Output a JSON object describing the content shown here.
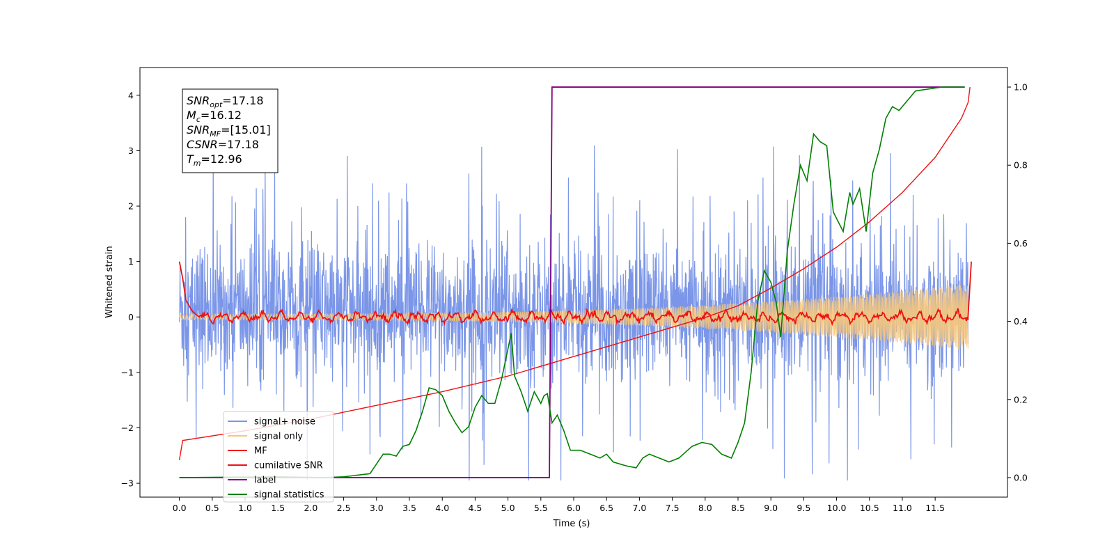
{
  "chart_data": {
    "type": "line",
    "xlabel": "Time (s)",
    "ylabel_left": "Whitened strain",
    "ylabel_right": "",
    "xlim": [
      -0.6,
      12.6
    ],
    "ylim_left": [
      -3.25,
      4.5
    ],
    "ylim_right": [
      -0.05,
      1.05
    ],
    "x_ticks": [
      "0.0",
      "0.5",
      "1.0",
      "1.5",
      "2.0",
      "2.5",
      "3.0",
      "3.5",
      "4.0",
      "4.5",
      "5.0",
      "5.5",
      "6.0",
      "6.5",
      "7.0",
      "7.5",
      "8.0",
      "8.5",
      "9.0",
      "9.5",
      "10.0",
      "10.5",
      "11.0",
      "11.5"
    ],
    "y_ticks_left": [
      "−3",
      "−2",
      "−1",
      "0",
      "1",
      "2",
      "3",
      "4"
    ],
    "y_ticks_right": [
      "0.0",
      "0.2",
      "0.4",
      "0.6",
      "0.8",
      "1.0"
    ],
    "grid": false,
    "legend_position": "lower-left",
    "annotation": {
      "lines": [
        {
          "sym": "SNR",
          "sub": "opt",
          "val": "=17.18"
        },
        {
          "sym": "M",
          "sub": "c",
          "val": "=16.12"
        },
        {
          "sym": "SNR",
          "sub": "MF",
          "val": "=[15.01]"
        },
        {
          "sym": "CSNR",
          "sub": "",
          "val": "=17.18"
        },
        {
          "sym": "T",
          "sub": "m",
          "val": "=12.96"
        }
      ]
    },
    "series": [
      {
        "name": "signal+ noise",
        "axis": "left",
        "color": "#7b96e8",
        "description": "noise band roughly between -1.4 and 1.6 with spikes to about ±3",
        "t_range": [
          0.0,
          12.0
        ]
      },
      {
        "name": "signal only",
        "axis": "left",
        "color": "#f5c77c",
        "description": "chirp with amplitude growing from ~0.05 to ~0.6",
        "t_range": [
          0.0,
          12.0
        ]
      },
      {
        "name": "MF",
        "axis": "left",
        "color": "#ee1111",
        "points": [
          [
            0.0,
            1.0
          ],
          [
            0.05,
            0.7
          ],
          [
            0.1,
            0.3
          ],
          [
            0.2,
            0.1
          ],
          [
            0.3,
            0.0
          ],
          [
            0.5,
            0.05
          ],
          [
            12.0,
            0.0
          ],
          [
            12.03,
            0.6
          ],
          [
            12.05,
            1.0
          ]
        ]
      },
      {
        "name": "cumilative SNR",
        "axis": "right",
        "color": "#ee1111",
        "points": [
          [
            0.0,
            0.045
          ],
          [
            0.05,
            0.095
          ],
          [
            1.0,
            0.12
          ],
          [
            2.0,
            0.15
          ],
          [
            3.0,
            0.185
          ],
          [
            4.0,
            0.22
          ],
          [
            5.0,
            0.26
          ],
          [
            6.0,
            0.31
          ],
          [
            7.0,
            0.36
          ],
          [
            8.0,
            0.41
          ],
          [
            8.5,
            0.44
          ],
          [
            9.0,
            0.485
          ],
          [
            9.5,
            0.535
          ],
          [
            10.0,
            0.59
          ],
          [
            10.5,
            0.655
          ],
          [
            11.0,
            0.73
          ],
          [
            11.5,
            0.82
          ],
          [
            11.9,
            0.92
          ],
          [
            12.0,
            0.96
          ],
          [
            12.03,
            1.0
          ]
        ]
      },
      {
        "name": "label",
        "axis": "right",
        "color": "#800080",
        "points": [
          [
            0.0,
            0.0
          ],
          [
            5.63,
            0.0
          ],
          [
            5.67,
            1.0
          ],
          [
            11.95,
            1.0
          ]
        ]
      },
      {
        "name": "signal statistics",
        "axis": "right",
        "color": "#008000",
        "points": [
          [
            0.0,
            0.0
          ],
          [
            1.5,
            0.002
          ],
          [
            2.2,
            0.0
          ],
          [
            2.5,
            0.002
          ],
          [
            2.7,
            0.006
          ],
          [
            2.9,
            0.01
          ],
          [
            3.0,
            0.035
          ],
          [
            3.1,
            0.06
          ],
          [
            3.2,
            0.06
          ],
          [
            3.3,
            0.055
          ],
          [
            3.4,
            0.08
          ],
          [
            3.5,
            0.085
          ],
          [
            3.6,
            0.12
          ],
          [
            3.7,
            0.17
          ],
          [
            3.8,
            0.23
          ],
          [
            3.9,
            0.225
          ],
          [
            4.0,
            0.21
          ],
          [
            4.1,
            0.17
          ],
          [
            4.2,
            0.14
          ],
          [
            4.3,
            0.115
          ],
          [
            4.4,
            0.13
          ],
          [
            4.5,
            0.18
          ],
          [
            4.6,
            0.21
          ],
          [
            4.7,
            0.19
          ],
          [
            4.8,
            0.19
          ],
          [
            4.9,
            0.25
          ],
          [
            5.0,
            0.33
          ],
          [
            5.05,
            0.37
          ],
          [
            5.1,
            0.26
          ],
          [
            5.2,
            0.22
          ],
          [
            5.3,
            0.17
          ],
          [
            5.4,
            0.22
          ],
          [
            5.5,
            0.19
          ],
          [
            5.55,
            0.21
          ],
          [
            5.6,
            0.215
          ],
          [
            5.67,
            0.14
          ],
          [
            5.75,
            0.16
          ],
          [
            5.85,
            0.12
          ],
          [
            5.95,
            0.07
          ],
          [
            6.1,
            0.07
          ],
          [
            6.25,
            0.06
          ],
          [
            6.4,
            0.05
          ],
          [
            6.5,
            0.06
          ],
          [
            6.6,
            0.04
          ],
          [
            6.8,
            0.03
          ],
          [
            6.95,
            0.025
          ],
          [
            7.05,
            0.05
          ],
          [
            7.15,
            0.06
          ],
          [
            7.3,
            0.05
          ],
          [
            7.45,
            0.04
          ],
          [
            7.6,
            0.05
          ],
          [
            7.8,
            0.08
          ],
          [
            7.95,
            0.09
          ],
          [
            8.1,
            0.085
          ],
          [
            8.25,
            0.06
          ],
          [
            8.4,
            0.05
          ],
          [
            8.5,
            0.09
          ],
          [
            8.6,
            0.14
          ],
          [
            8.7,
            0.27
          ],
          [
            8.8,
            0.45
          ],
          [
            8.9,
            0.53
          ],
          [
            9.0,
            0.5
          ],
          [
            9.08,
            0.45
          ],
          [
            9.15,
            0.36
          ],
          [
            9.25,
            0.58
          ],
          [
            9.35,
            0.7
          ],
          [
            9.45,
            0.8
          ],
          [
            9.55,
            0.76
          ],
          [
            9.65,
            0.88
          ],
          [
            9.75,
            0.86
          ],
          [
            9.85,
            0.85
          ],
          [
            9.95,
            0.68
          ],
          [
            10.1,
            0.63
          ],
          [
            10.2,
            0.73
          ],
          [
            10.25,
            0.7
          ],
          [
            10.35,
            0.74
          ],
          [
            10.45,
            0.63
          ],
          [
            10.55,
            0.78
          ],
          [
            10.65,
            0.84
          ],
          [
            10.75,
            0.92
          ],
          [
            10.85,
            0.95
          ],
          [
            10.95,
            0.94
          ],
          [
            11.05,
            0.96
          ],
          [
            11.2,
            0.99
          ],
          [
            11.4,
            0.995
          ],
          [
            11.6,
            1.0
          ],
          [
            11.8,
            1.0
          ],
          [
            11.95,
            1.0
          ]
        ]
      }
    ]
  }
}
